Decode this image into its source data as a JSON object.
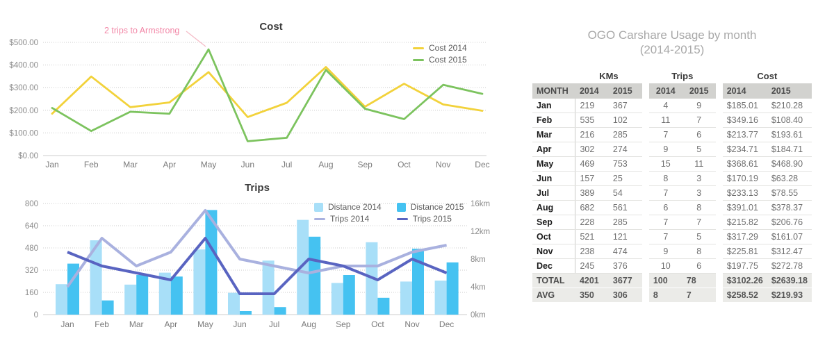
{
  "chart_data": [
    {
      "type": "line",
      "title": "Cost",
      "categories": [
        "Jan",
        "Feb",
        "Mar",
        "Apr",
        "May",
        "Jun",
        "Jul",
        "Aug",
        "Sep",
        "Oct",
        "Nov",
        "Dec"
      ],
      "series": [
        {
          "name": "Cost 2014",
          "color": "#f2d23b",
          "values": [
            185.01,
            349.16,
            213.77,
            234.71,
            368.61,
            170.19,
            233.13,
            391.01,
            215.82,
            317.29,
            225.81,
            197.75
          ]
        },
        {
          "name": "Cost 2015",
          "color": "#7cc35e",
          "values": [
            210.28,
            108.4,
            193.61,
            184.71,
            468.9,
            63.28,
            78.55,
            378.37,
            206.76,
            161.07,
            312.47,
            272.78
          ]
        }
      ],
      "ylim": [
        0,
        500
      ],
      "y_step": 100,
      "y_ticks": [
        "$0.00",
        "$100.00",
        "$200.00",
        "$300.00",
        "$400.00",
        "$500.00"
      ],
      "grid": "dotted-horizontal",
      "legend_position": "top-right",
      "annotation": {
        "text": "2 trips to Armstrong",
        "color": "#f287a7",
        "leader_color": "#f5bcc7",
        "points_to": "May Cost 2015 peak $468.90"
      }
    },
    {
      "type": "bar+line",
      "title": "Trips",
      "categories": [
        "Jan",
        "Feb",
        "Mar",
        "Apr",
        "May",
        "Jun",
        "Jul",
        "Aug",
        "Sep",
        "Oct",
        "Nov",
        "Dec"
      ],
      "bar_series": [
        {
          "name": "Distance 2014",
          "color": "#a8dff8",
          "values": [
            219,
            535,
            216,
            302,
            469,
            157,
            389,
            682,
            228,
            521,
            238,
            245
          ]
        },
        {
          "name": "Distance 2015",
          "color": "#45c2f1",
          "values": [
            367,
            102,
            285,
            274,
            753,
            25,
            54,
            561,
            285,
            121,
            474,
            376
          ]
        }
      ],
      "line_series": [
        {
          "name": "Trips 2014",
          "color": "#a9b1df",
          "values": [
            4,
            11,
            7,
            9,
            15,
            8,
            7,
            6,
            7,
            7,
            9,
            10
          ]
        },
        {
          "name": "Trips 2015",
          "color": "#5964c1",
          "values": [
            9,
            7,
            6,
            5,
            11,
            3,
            3,
            8,
            7,
            5,
            8,
            6
          ]
        }
      ],
      "left_axis": {
        "max": 800,
        "ticks": [
          "0",
          "160",
          "320",
          "480",
          "640",
          "800"
        ]
      },
      "right_axis": {
        "max": 16,
        "ticks": [
          "0km",
          "4km",
          "8km",
          "12km",
          "16km"
        ]
      },
      "grid": "dotted-horizontal",
      "legend_position": "top-right"
    }
  ],
  "table": {
    "title_line1": "OGO Carshare Usage by month",
    "title_line2": "(2014-2015)",
    "title_color": "#a8a8a8",
    "group_headers": [
      "KMs",
      "Trips",
      "Cost"
    ],
    "column_headers": {
      "month": "MONTH",
      "year1": "2014",
      "year2": "2015"
    },
    "rows": [
      {
        "month": "Jan",
        "kms": [
          "219",
          "367"
        ],
        "trips": [
          "4",
          "9"
        ],
        "cost": [
          "$185.01",
          "$210.28"
        ]
      },
      {
        "month": "Feb",
        "kms": [
          "535",
          "102"
        ],
        "trips": [
          "11",
          "7"
        ],
        "cost": [
          "$349.16",
          "$108.40"
        ]
      },
      {
        "month": "Mar",
        "kms": [
          "216",
          "285"
        ],
        "trips": [
          "7",
          "6"
        ],
        "cost": [
          "$213.77",
          "$193.61"
        ]
      },
      {
        "month": "Apr",
        "kms": [
          "302",
          "274"
        ],
        "trips": [
          "9",
          "5"
        ],
        "cost": [
          "$234.71",
          "$184.71"
        ]
      },
      {
        "month": "May",
        "kms": [
          "469",
          "753"
        ],
        "trips": [
          "15",
          "11"
        ],
        "cost": [
          "$368.61",
          "$468.90"
        ]
      },
      {
        "month": "Jun",
        "kms": [
          "157",
          "25"
        ],
        "trips": [
          "8",
          "3"
        ],
        "cost": [
          "$170.19",
          "$63.28"
        ]
      },
      {
        "month": "Jul",
        "kms": [
          "389",
          "54"
        ],
        "trips": [
          "7",
          "3"
        ],
        "cost": [
          "$233.13",
          "$78.55"
        ]
      },
      {
        "month": "Aug",
        "kms": [
          "682",
          "561"
        ],
        "trips": [
          "6",
          "8"
        ],
        "cost": [
          "$391.01",
          "$378.37"
        ]
      },
      {
        "month": "Sep",
        "kms": [
          "228",
          "285"
        ],
        "trips": [
          "7",
          "7"
        ],
        "cost": [
          "$215.82",
          "$206.76"
        ]
      },
      {
        "month": "Oct",
        "kms": [
          "521",
          "121"
        ],
        "trips": [
          "7",
          "5"
        ],
        "cost": [
          "$317.29",
          "$161.07"
        ]
      },
      {
        "month": "Nov",
        "kms": [
          "238",
          "474"
        ],
        "trips": [
          "9",
          "8"
        ],
        "cost": [
          "$225.81",
          "$312.47"
        ]
      },
      {
        "month": "Dec",
        "kms": [
          "245",
          "376"
        ],
        "trips": [
          "10",
          "6"
        ],
        "cost": [
          "$197.75",
          "$272.78"
        ]
      }
    ],
    "total_row": {
      "month": "TOTAL",
      "kms": [
        "4201",
        "3677"
      ],
      "trips": [
        "100",
        "78"
      ],
      "cost": [
        "$3102.26",
        "$2639.18"
      ]
    },
    "avg_row": {
      "month": "AVG",
      "kms": [
        "350",
        "306"
      ],
      "trips": [
        "8",
        "7"
      ],
      "cost": [
        "$258.52",
        "$219.93"
      ]
    }
  }
}
